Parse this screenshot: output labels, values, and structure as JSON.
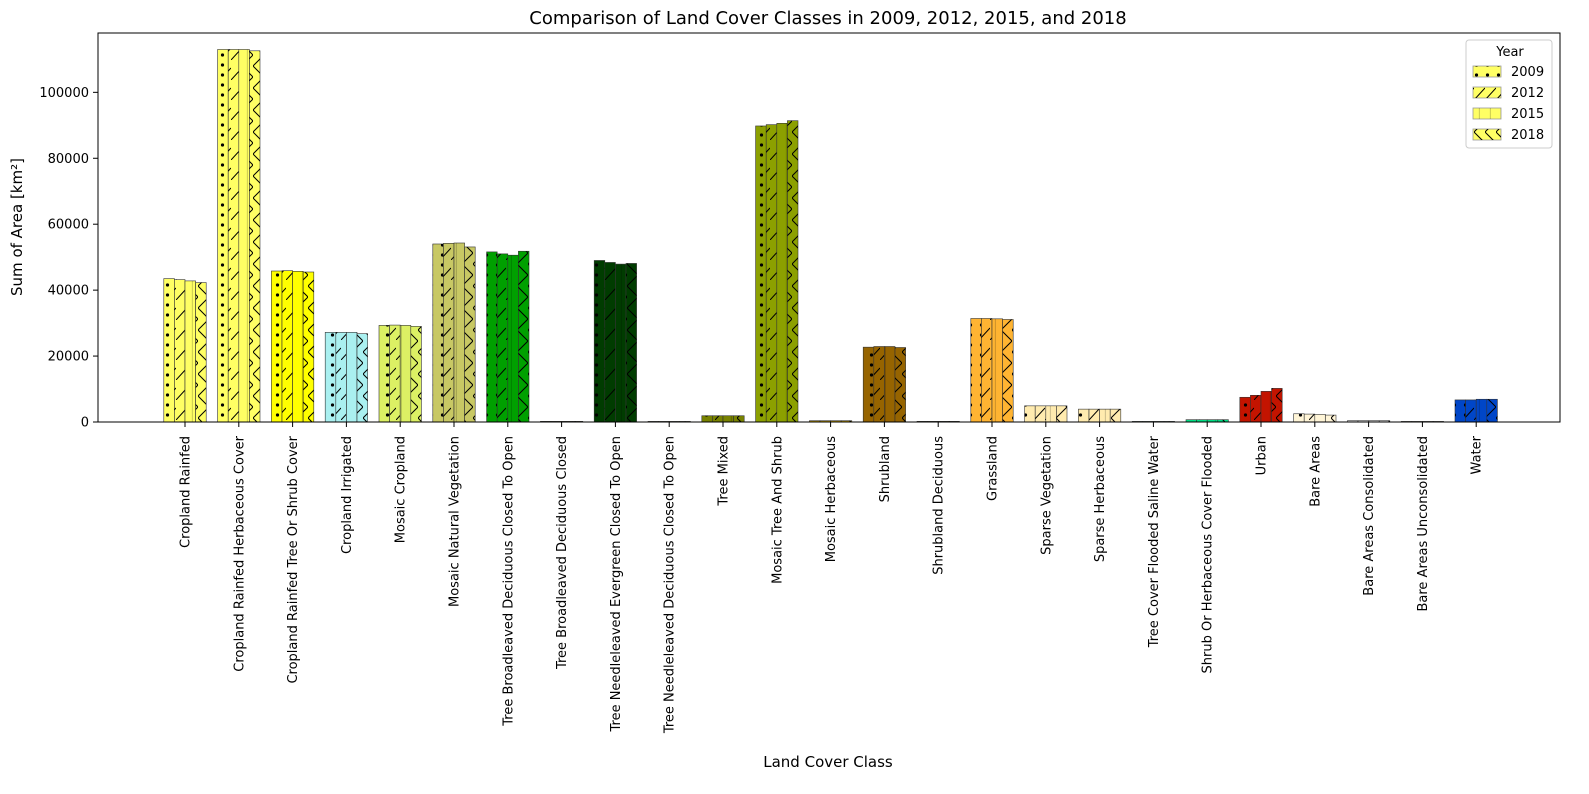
{
  "chart_data": {
    "type": "bar",
    "title": "Comparison of Land Cover Classes in 2009, 2012, 2015, and 2018",
    "xlabel": "Land Cover Class",
    "ylabel": "Sum of Area [km²]",
    "ylim": [
      0,
      118000
    ],
    "yticks": [
      0,
      20000,
      40000,
      60000,
      80000,
      100000
    ],
    "grid": false,
    "legend": {
      "title": "Year",
      "placement": "top-right"
    },
    "categories": [
      "Cropland Rainfed",
      "Cropland Rainfed Herbaceous Cover",
      "Cropland Rainfed Tree Or Shrub Cover",
      "Cropland Irrigated",
      "Mosaic Cropland",
      "Mosaic Natural Vegetation",
      "Tree Broadleaved Deciduous Closed To Open",
      "Tree Broadleaved Deciduous Closed",
      "Tree Needleleaved Evergreen Closed To Open",
      "Tree Needleleaved Deciduous Closed To Open",
      "Tree Mixed",
      "Mosaic Tree And Shrub",
      "Mosaic Herbaceous",
      "Shrubland",
      "Shrubland Deciduous",
      "Grassland",
      "Sparse Vegetation",
      "Sparse Herbaceous",
      "Tree Cover Flooded Saline Water",
      "Shrub Or Herbaceous Cover Flooded",
      "Urban",
      "Bare Areas",
      "Bare Areas Consolidated",
      "Bare Areas Unconsolidated",
      "Water"
    ],
    "category_colors": [
      "#ffff64",
      "#ffff64",
      "#ffff00",
      "#aaf0f0",
      "#dcf064",
      "#c8c864",
      "#00a000",
      "#aac800",
      "#003c00",
      "#285000",
      "#788200",
      "#8ca000",
      "#be9600",
      "#966400",
      "#966400",
      "#ffb432",
      "#ffebaf",
      "#ffebaf",
      "#00785a",
      "#00dc82",
      "#c31400",
      "#fff5d7",
      "#dcdcdc",
      "#fff5d7",
      "#0046c8"
    ],
    "series": [
      {
        "name": "2009",
        "hatch": "dots",
        "values": [
          43500,
          113000,
          45800,
          27200,
          29300,
          54000,
          51600,
          200,
          49000,
          50,
          1900,
          89800,
          400,
          22700,
          200,
          31400,
          4900,
          3900,
          100,
          700,
          7500,
          2500,
          400,
          100,
          6700
        ]
      },
      {
        "name": "2012",
        "hatch": "slash",
        "values": [
          43200,
          113000,
          45900,
          27200,
          29400,
          54200,
          51000,
          200,
          48400,
          50,
          1900,
          90200,
          400,
          22900,
          200,
          31400,
          4900,
          3900,
          100,
          700,
          8100,
          2400,
          400,
          100,
          6700
        ]
      },
      {
        "name": "2015",
        "hatch": "vertical",
        "values": [
          42800,
          113000,
          45700,
          27200,
          29300,
          54300,
          50600,
          200,
          47900,
          50,
          1900,
          90600,
          400,
          22900,
          200,
          31300,
          4900,
          3900,
          100,
          700,
          9300,
          2300,
          400,
          100,
          6900
        ]
      },
      {
        "name": "2018",
        "hatch": "cross",
        "values": [
          42300,
          112600,
          45500,
          26800,
          29000,
          53100,
          51800,
          200,
          48100,
          50,
          1900,
          91400,
          400,
          22600,
          200,
          31100,
          4900,
          3900,
          100,
          700,
          10200,
          2100,
          400,
          100,
          6900
        ]
      }
    ]
  }
}
